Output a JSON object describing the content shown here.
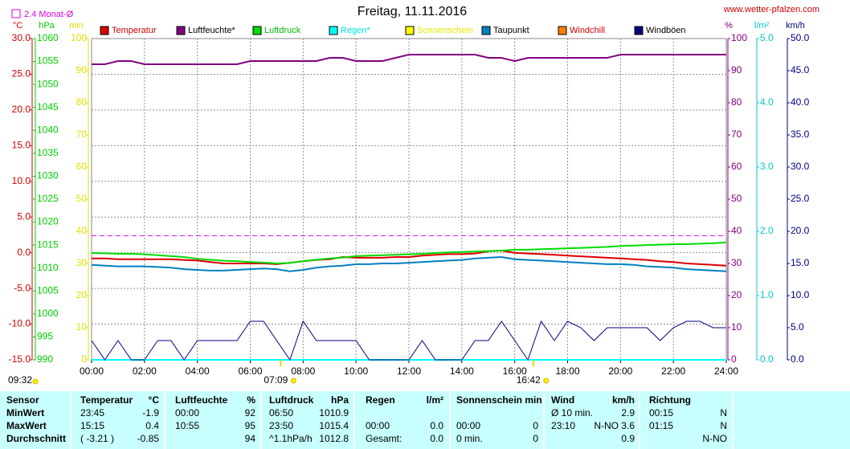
{
  "chart_data": {
    "type": "line",
    "title": "Freitag, 11.11.2016",
    "source": "www.wetter-pfalzen.com",
    "grid": true,
    "x": [
      0,
      0.5,
      1,
      1.5,
      2,
      2.5,
      3,
      3.5,
      4,
      4.5,
      5,
      5.5,
      6,
      6.5,
      7,
      7.5,
      8,
      8.5,
      9,
      9.5,
      10,
      10.5,
      11,
      11.5,
      12,
      12.5,
      13,
      13.5,
      14,
      14.5,
      15,
      15.5,
      16,
      16.5,
      17,
      17.5,
      18,
      18.5,
      19,
      19.5,
      20,
      20.5,
      21,
      21.5,
      22,
      22.5,
      23,
      23.5,
      24
    ],
    "xlim": [
      0,
      24
    ],
    "xticks": [
      {
        "value": 0,
        "label": "00:00"
      },
      {
        "value": 2,
        "label": "02:00"
      },
      {
        "value": 4,
        "label": "04:00"
      },
      {
        "value": 6,
        "label": "06:00"
      },
      {
        "value": 8,
        "label": "08:00"
      },
      {
        "value": 10,
        "label": "10:00"
      },
      {
        "value": 12,
        "label": "12:00"
      },
      {
        "value": 14,
        "label": "14:00"
      },
      {
        "value": 16,
        "label": "16:00"
      },
      {
        "value": 18,
        "label": "18:00"
      },
      {
        "value": 20,
        "label": "20:00"
      },
      {
        "value": 22,
        "label": "22:00"
      },
      {
        "value": 24,
        "label": "24:00"
      }
    ],
    "axes": [
      {
        "id": "C",
        "unit": "°C",
        "side": "left",
        "color": "#cc0000",
        "lim": [
          -15,
          30
        ],
        "ticks": [
          {
            "value": 30,
            "label": "30.0"
          },
          {
            "value": 25,
            "label": "25.0"
          },
          {
            "value": 20,
            "label": "20.0"
          },
          {
            "value": 15,
            "label": "15.0"
          },
          {
            "value": 10,
            "label": "10.0"
          },
          {
            "value": 5,
            "label": "5.0"
          },
          {
            "value": 0,
            "label": "0.0"
          },
          {
            "value": -5,
            "label": "-5.0"
          },
          {
            "value": -10,
            "label": "-10.0"
          },
          {
            "value": -15,
            "label": "-15.0"
          }
        ]
      },
      {
        "id": "hPa",
        "unit": "hPa",
        "side": "left",
        "color": "#00cc00",
        "lim": [
          990,
          1060
        ],
        "ticks": [
          1060,
          1055,
          1050,
          1045,
          1040,
          1035,
          1030,
          1025,
          1020,
          1015,
          1010,
          1005,
          1000,
          995,
          990
        ]
      },
      {
        "id": "min",
        "unit": "min",
        "side": "left",
        "color": "#e0e000",
        "lim": [
          0,
          100
        ],
        "ticks": [
          100,
          90,
          80,
          70,
          60,
          50,
          40,
          30,
          20,
          10,
          0
        ]
      },
      {
        "id": "pct",
        "unit": "%",
        "side": "right",
        "color": "#800080",
        "lim": [
          0,
          100
        ],
        "ticks": [
          100,
          90,
          80,
          70,
          60,
          50,
          40,
          30,
          20,
          10,
          0
        ]
      },
      {
        "id": "lm2",
        "unit": "l/m²",
        "side": "right",
        "color": "#00c8c8",
        "lim": [
          0,
          5
        ],
        "ticks": [
          {
            "value": 5,
            "label": "5.0"
          },
          {
            "value": 4,
            "label": "4.0"
          },
          {
            "value": 3,
            "label": "3.0"
          },
          {
            "value": 2,
            "label": "2.0"
          },
          {
            "value": 1,
            "label": "1.0"
          },
          {
            "value": 0,
            "label": "0.0"
          }
        ]
      },
      {
        "id": "kmh",
        "unit": "km/h",
        "side": "right",
        "color": "#000080",
        "lim": [
          0,
          50
        ],
        "ticks": [
          {
            "value": 50,
            "label": "50.0"
          },
          {
            "value": 45,
            "label": "45.0"
          },
          {
            "value": 40,
            "label": "40.0"
          },
          {
            "value": 35,
            "label": "35.0"
          },
          {
            "value": 30,
            "label": "30.0"
          },
          {
            "value": 25,
            "label": "25.0"
          },
          {
            "value": 20,
            "label": "20.0"
          },
          {
            "value": 15,
            "label": "15.0"
          },
          {
            "value": 10,
            "label": "10.0"
          },
          {
            "value": 5,
            "label": "5.0"
          },
          {
            "value": 0,
            "label": "0.0"
          }
        ]
      }
    ],
    "reference": {
      "value": 2.4,
      "label": "2.4 Monat-Ø",
      "axis": "C",
      "color": "#e000e0"
    },
    "series": [
      {
        "name": "Temperatur",
        "color": "#dd0000",
        "label_color": "#cc0000",
        "axis": "C",
        "values": [
          -0.8,
          -0.8,
          -0.9,
          -0.9,
          -0.9,
          -0.9,
          -0.9,
          -1.0,
          -1.1,
          -1.3,
          -1.5,
          -1.5,
          -1.5,
          -1.5,
          -1.6,
          -1.4,
          -1.2,
          -1.0,
          -0.9,
          -0.6,
          -0.7,
          -0.7,
          -0.7,
          -0.6,
          -0.6,
          -0.4,
          -0.3,
          -0.2,
          -0.2,
          -0.1,
          0.2,
          0.3,
          0.0,
          -0.1,
          -0.2,
          -0.3,
          -0.4,
          -0.5,
          -0.6,
          -0.7,
          -0.8,
          -0.9,
          -1.0,
          -1.2,
          -1.3,
          -1.5,
          -1.6,
          -1.7,
          -1.8
        ]
      },
      {
        "name": "Luftfeuchte*",
        "color": "#800080",
        "label_color": "#000000",
        "axis": "pct",
        "values": [
          92,
          92,
          93,
          93,
          92,
          92,
          92,
          92,
          92,
          92,
          92,
          92,
          93,
          93,
          93,
          93,
          93,
          93,
          94,
          94,
          93,
          93,
          93,
          94,
          95,
          95,
          95,
          95,
          95,
          95,
          94,
          94,
          93,
          94,
          94,
          94,
          94,
          94,
          94,
          94,
          95,
          95,
          95,
          95,
          95,
          95,
          95,
          95,
          95
        ]
      },
      {
        "name": "Luftdruck",
        "color": "#00dd00",
        "label_color": "#00bb00",
        "axis": "hPa",
        "values": [
          1013.3,
          1013.2,
          1013.1,
          1013.1,
          1013.0,
          1012.8,
          1012.6,
          1012.4,
          1012.0,
          1011.8,
          1011.6,
          1011.5,
          1011.3,
          1011.2,
          1011.0,
          1011.1,
          1011.5,
          1011.8,
          1012.1,
          1012.3,
          1012.6,
          1012.7,
          1012.8,
          1012.9,
          1013.0,
          1013.1,
          1013.3,
          1013.4,
          1013.5,
          1013.6,
          1013.7,
          1013.8,
          1014.0,
          1014.0,
          1014.1,
          1014.2,
          1014.3,
          1014.4,
          1014.5,
          1014.6,
          1014.8,
          1014.9,
          1015.0,
          1015.1,
          1015.2,
          1015.2,
          1015.3,
          1015.4,
          1015.6
        ]
      },
      {
        "name": "Regen*",
        "color": "#00ffff",
        "label_color": "#00e0e0",
        "axis": "lm2",
        "values": [
          0,
          0,
          0,
          0,
          0,
          0,
          0,
          0,
          0,
          0,
          0,
          0,
          0,
          0,
          0,
          0,
          0,
          0,
          0,
          0,
          0,
          0,
          0,
          0,
          0,
          0,
          0,
          0,
          0,
          0,
          0,
          0,
          0,
          0,
          0,
          0,
          0,
          0,
          0,
          0,
          0,
          0,
          0,
          0,
          0,
          0,
          0,
          0,
          0
        ]
      },
      {
        "name": "Sonnenschein",
        "color": "#ffff00",
        "label_color": "#e8e800",
        "axis": "min"
      },
      {
        "name": "Taupunkt",
        "color": "#0080c0",
        "label_color": "#000000",
        "axis": "C",
        "values": [
          -1.7,
          -1.8,
          -1.9,
          -1.9,
          -1.9,
          -2.0,
          -2.1,
          -2.3,
          -2.4,
          -2.5,
          -2.5,
          -2.4,
          -2.3,
          -2.2,
          -2.3,
          -2.6,
          -2.4,
          -2.1,
          -1.9,
          -1.8,
          -1.6,
          -1.6,
          -1.5,
          -1.5,
          -1.4,
          -1.3,
          -1.2,
          -1.1,
          -1.0,
          -0.8,
          -0.7,
          -0.6,
          -0.9,
          -1.0,
          -1.1,
          -1.2,
          -1.3,
          -1.4,
          -1.5,
          -1.6,
          -1.6,
          -1.7,
          -1.9,
          -2.0,
          -2.1,
          -2.3,
          -2.4,
          -2.5,
          -2.6
        ]
      },
      {
        "name": "Windchill",
        "color": "#ff8000",
        "label_color": "#cc0000",
        "axis": "C"
      },
      {
        "name": "Windböen",
        "color": "#000080",
        "label_color": "#000000",
        "axis": "kmh",
        "values": [
          3,
          0,
          3,
          0,
          0,
          3,
          3,
          0,
          3,
          3,
          3,
          3,
          6,
          6,
          3,
          0,
          6,
          3,
          3,
          3,
          3,
          0,
          0,
          0,
          0,
          3,
          0,
          0,
          0,
          3,
          3,
          6,
          3,
          0,
          6,
          3,
          6,
          5,
          3,
          5,
          5,
          5,
          5,
          3,
          5,
          6,
          6,
          5,
          5
        ]
      }
    ],
    "sunrise": "07:09",
    "sunset": "16:42",
    "daylength": "09:32"
  },
  "table": {
    "header": [
      "Sensor",
      "Temperatur",
      "°C",
      "Luftfeuchte",
      "%",
      "Luftdruck",
      "hPa",
      "Regen",
      "l/m²",
      "Sonnenschein min",
      null,
      "Wind",
      "km/h",
      "Richtung",
      null
    ],
    "rows": [
      [
        "MinWert",
        "23:45",
        "-1.9",
        "00:00",
        "92",
        "06:50",
        "1010.9",
        null,
        null,
        null,
        null,
        "Ø 10 min.",
        "2.9",
        "00:15",
        "N"
      ],
      [
        "MaxWert",
        "15:15",
        "0.4",
        "10:55",
        "95",
        "23:50",
        "1015.4",
        "00:00",
        "0.0",
        "00:00",
        "0",
        "23:10",
        "N-NO 3.6",
        "01:15",
        "N"
      ],
      [
        "Durchschnitt",
        "( -3.21 )",
        "-0.85",
        null,
        "94",
        "^1.1hPa/h",
        "1012.8",
        "Gesamt:",
        "0.0",
        "0 min.",
        "0",
        null,
        "0.9",
        null,
        "N-NO"
      ]
    ]
  }
}
